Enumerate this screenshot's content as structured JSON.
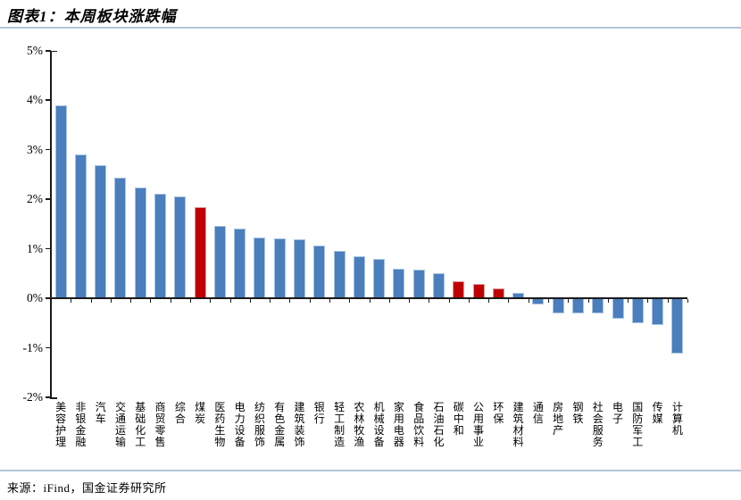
{
  "header": {
    "title": "图表1：本周板块涨跌幅"
  },
  "footer": {
    "source": "来源：iFind，国金证券研究所"
  },
  "chart_data": {
    "type": "bar",
    "title": "本周板块涨跌幅",
    "unit": "%",
    "categories": [
      "美容护理",
      "非银金融",
      "汽车",
      "交通运输",
      "基础化工",
      "商贸零售",
      "综合",
      "煤炭",
      "医药生物",
      "电力设备",
      "纺织服饰",
      "有色金属",
      "建筑装饰",
      "银行",
      "轻工制造",
      "农林牧渔",
      "机械设备",
      "家用电器",
      "食品饮料",
      "石油石化",
      "碳中和",
      "公用事业",
      "环保",
      "建筑材料",
      "通信",
      "房地产",
      "钢铁",
      "社会服务",
      "电子",
      "国防军工",
      "传媒",
      "计算机"
    ],
    "values": [
      3.9,
      2.9,
      2.69,
      2.44,
      2.23,
      2.11,
      2.06,
      1.84,
      1.46,
      1.4,
      1.23,
      1.21,
      1.19,
      1.07,
      0.96,
      0.85,
      0.8,
      0.6,
      0.58,
      0.51,
      0.35,
      0.28,
      0.2,
      0.11,
      -0.13,
      -0.31,
      -0.3,
      -0.31,
      -0.42,
      -0.51,
      -0.55,
      -1.12
    ],
    "highlight_indices": [
      7,
      20,
      21,
      22
    ],
    "highlighted_categories": [
      "煤炭",
      "碳中和",
      "公用事业",
      "环保"
    ],
    "colors": {
      "default": "#4A7EBC",
      "default_edge": "#a9c4e2",
      "highlight": "#C00000",
      "highlight_edge": "#dc9a9a"
    },
    "y_ticks": [
      "5%",
      "4%",
      "3%",
      "2%",
      "1%",
      "0%",
      "-1%",
      "-2%"
    ],
    "ylim": [
      -2,
      5
    ],
    "grid": false,
    "legend": false,
    "xlabel": "",
    "ylabel": ""
  }
}
